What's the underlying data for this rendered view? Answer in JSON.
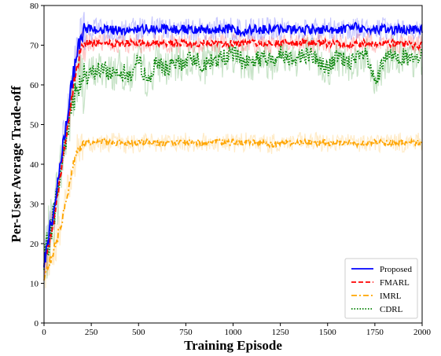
{
  "chart_data": {
    "type": "line",
    "xlabel": "Training Episode",
    "ylabel": "Per-User Average Trade-off",
    "xlim": [
      0,
      2000
    ],
    "ylim": [
      0,
      80
    ],
    "xticks": [
      0,
      250,
      500,
      750,
      1000,
      1250,
      1500,
      1750,
      2000
    ],
    "yticks": [
      0,
      10,
      20,
      30,
      40,
      50,
      60,
      70,
      80
    ],
    "grid": false,
    "legend_position": "bottom-right",
    "series": [
      {
        "name": "Proposed",
        "color": "#0000ff",
        "style": "solid",
        "x": [
          0,
          25,
          50,
          75,
          100,
          125,
          150,
          175,
          200,
          225,
          250,
          300,
          350,
          400,
          450,
          500,
          550,
          600,
          650,
          700,
          750,
          800,
          850,
          900,
          950,
          1000,
          1050,
          1100,
          1150,
          1200,
          1250,
          1300,
          1350,
          1400,
          1450,
          1500,
          1550,
          1600,
          1650,
          1700,
          1750,
          1800,
          1850,
          1900,
          1950,
          2000
        ],
        "values": [
          15,
          22,
          28,
          36,
          45,
          53,
          61,
          68,
          73,
          74,
          74,
          74,
          74,
          73.5,
          74,
          74,
          74.5,
          74,
          74,
          74,
          74,
          74,
          74,
          74,
          74,
          74,
          73.5,
          74,
          74,
          74,
          74,
          74,
          74,
          74,
          74,
          74,
          74,
          74,
          74.5,
          74,
          74,
          74,
          74,
          74,
          74,
          74
        ]
      },
      {
        "name": "FMARL",
        "color": "#ff0000",
        "style": "dashed",
        "x": [
          0,
          25,
          50,
          75,
          100,
          125,
          150,
          175,
          200,
          225,
          250,
          300,
          350,
          400,
          450,
          500,
          550,
          600,
          650,
          700,
          750,
          800,
          850,
          900,
          950,
          1000,
          1050,
          1100,
          1150,
          1200,
          1250,
          1300,
          1350,
          1400,
          1450,
          1500,
          1550,
          1600,
          1650,
          1700,
          1750,
          1800,
          1850,
          1900,
          1950,
          2000
        ],
        "values": [
          14,
          20,
          26,
          33,
          42,
          50,
          58,
          65,
          70,
          70.5,
          70.5,
          70.5,
          70.5,
          70,
          70.5,
          70.5,
          70.5,
          70.5,
          70.5,
          70.5,
          70.5,
          70,
          70.5,
          70.5,
          70.5,
          70.5,
          70.5,
          70.5,
          70.5,
          70.5,
          70.5,
          70.5,
          70.5,
          70.5,
          70.5,
          70.5,
          70.5,
          70,
          70.5,
          70.5,
          70.5,
          70.5,
          70.5,
          70.5,
          70,
          70
        ]
      },
      {
        "name": "IMRL",
        "color": "#ffa500",
        "style": "dashdot",
        "x": [
          0,
          25,
          50,
          75,
          100,
          125,
          150,
          175,
          200,
          225,
          250,
          300,
          350,
          400,
          450,
          500,
          550,
          600,
          650,
          700,
          750,
          800,
          850,
          900,
          950,
          1000,
          1050,
          1100,
          1150,
          1200,
          1250,
          1300,
          1350,
          1400,
          1450,
          1500,
          1550,
          1600,
          1650,
          1700,
          1750,
          1800,
          1850,
          1900,
          1950,
          2000
        ],
        "values": [
          12,
          15,
          18,
          22,
          27,
          33,
          39,
          43,
          45,
          45.5,
          45.5,
          45.5,
          45.5,
          45.5,
          45,
          45.5,
          45.5,
          45.5,
          45,
          45.5,
          45.5,
          45.5,
          45.5,
          45.5,
          45.5,
          45.5,
          45.5,
          45.5,
          45.5,
          45,
          45.5,
          45.5,
          45.5,
          45.5,
          45.5,
          45.5,
          45.5,
          45.5,
          45,
          45.5,
          45.5,
          45.5,
          45.5,
          45.5,
          45.5,
          45.5
        ]
      },
      {
        "name": "CDRL",
        "color": "#008000",
        "style": "dotted",
        "x": [
          0,
          25,
          50,
          75,
          100,
          125,
          150,
          175,
          200,
          225,
          250,
          300,
          350,
          400,
          450,
          500,
          550,
          600,
          650,
          700,
          750,
          800,
          850,
          900,
          950,
          1000,
          1050,
          1100,
          1150,
          1200,
          1250,
          1300,
          1350,
          1400,
          1450,
          1500,
          1550,
          1600,
          1650,
          1700,
          1750,
          1800,
          1850,
          1900,
          1950,
          2000
        ],
        "values": [
          15,
          21,
          27,
          34,
          42,
          50,
          56,
          60,
          62,
          61,
          63,
          64,
          63,
          64,
          62,
          66,
          61,
          66,
          64,
          65,
          66,
          67,
          65,
          66,
          67,
          68,
          66,
          66,
          67,
          66,
          68,
          67,
          67,
          68,
          66,
          64,
          67,
          66,
          66,
          68,
          60,
          66,
          68,
          67,
          66,
          67
        ]
      }
    ]
  }
}
